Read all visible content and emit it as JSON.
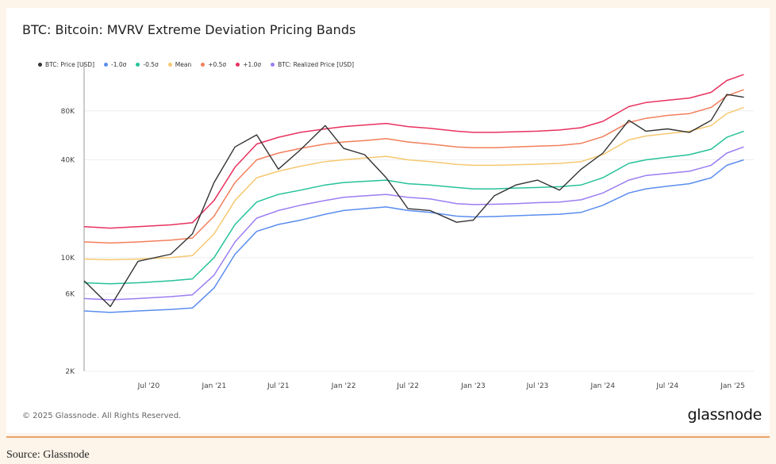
{
  "chart_data": {
    "type": "line",
    "title": "BTC: Bitcoin: MVRV Extreme Deviation Pricing Bands",
    "y_scale": "log",
    "ylim": [
      2000,
      140000
    ],
    "y_ticks": [
      {
        "label": "2K",
        "value": 2000
      },
      {
        "label": "6K",
        "value": 6000
      },
      {
        "label": "10K",
        "value": 10000
      },
      {
        "label": "40K",
        "value": 40000
      },
      {
        "label": "80K",
        "value": 80000
      }
    ],
    "xlim": [
      "2020-01-01",
      "2025-03-01"
    ],
    "x_ticks": [
      {
        "label": "Jul '20",
        "value": "2020-07-01"
      },
      {
        "label": "Jan '21",
        "value": "2021-01-01"
      },
      {
        "label": "Jul '21",
        "value": "2021-07-01"
      },
      {
        "label": "Jan '22",
        "value": "2022-01-01"
      },
      {
        "label": "Jul '22",
        "value": "2022-07-01"
      },
      {
        "label": "Jan '23",
        "value": "2023-01-01"
      },
      {
        "label": "Jul '23",
        "value": "2023-07-01"
      },
      {
        "label": "Jan '24",
        "value": "2024-01-01"
      },
      {
        "label": "Jul '24",
        "value": "2024-07-01"
      },
      {
        "label": "Jan '25",
        "value": "2025-01-01"
      }
    ],
    "grid": true,
    "legend_position": "top",
    "x": [
      "2020-01-01",
      "2020-03-15",
      "2020-06-01",
      "2020-09-01",
      "2020-11-01",
      "2021-01-01",
      "2021-03-01",
      "2021-05-01",
      "2021-07-01",
      "2021-09-01",
      "2021-11-10",
      "2022-01-01",
      "2022-03-01",
      "2022-05-01",
      "2022-07-01",
      "2022-09-01",
      "2022-11-15",
      "2023-01-01",
      "2023-03-01",
      "2023-05-01",
      "2023-07-01",
      "2023-09-01",
      "2023-11-01",
      "2024-01-01",
      "2024-03-14",
      "2024-05-01",
      "2024-07-01",
      "2024-09-01",
      "2024-11-01",
      "2024-12-15",
      "2025-02-01"
    ],
    "series": [
      {
        "name": "BTC: Price [USD]",
        "color": "#333333",
        "values": [
          7200,
          5000,
          9500,
          10500,
          14000,
          29000,
          48000,
          57000,
          35000,
          46000,
          65000,
          47000,
          43000,
          31000,
          20000,
          19500,
          16500,
          17000,
          24000,
          28000,
          30000,
          26000,
          35000,
          44000,
          70000,
          60000,
          62000,
          59000,
          70000,
          101000,
          97000
        ]
      },
      {
        "name": "-1.0σ",
        "color": "#5b8def",
        "values": [
          4700,
          4600,
          4700,
          4800,
          4900,
          6500,
          10500,
          14500,
          16000,
          17000,
          18500,
          19500,
          20000,
          20500,
          19500,
          19000,
          18000,
          17800,
          17900,
          18100,
          18300,
          18500,
          19000,
          21000,
          25000,
          26500,
          27500,
          28500,
          31000,
          37000,
          40000
        ]
      },
      {
        "name": "-0.5σ",
        "color": "#26c29a",
        "values": [
          7000,
          6900,
          7000,
          7200,
          7400,
          10000,
          16000,
          22000,
          24500,
          26000,
          28000,
          29000,
          29500,
          30000,
          28500,
          28000,
          27000,
          26500,
          26500,
          26800,
          27000,
          27300,
          28000,
          31000,
          38000,
          40000,
          41500,
          43000,
          46500,
          55000,
          60000
        ]
      },
      {
        "name": "Mean",
        "color": "#f6c870",
        "values": [
          9800,
          9700,
          9800,
          10000,
          10300,
          14000,
          22500,
          31000,
          34000,
          36500,
          39000,
          40000,
          41000,
          42000,
          40000,
          39000,
          37500,
          37000,
          37000,
          37300,
          37600,
          38000,
          39000,
          43000,
          53000,
          56000,
          58000,
          60000,
          65000,
          77000,
          84000
        ]
      },
      {
        "name": "+0.5σ",
        "color": "#f27f5b",
        "values": [
          12500,
          12300,
          12500,
          12800,
          13200,
          18000,
          29000,
          40000,
          44000,
          47000,
          50000,
          51500,
          52500,
          54000,
          51500,
          50000,
          48000,
          47500,
          47500,
          48000,
          48500,
          49000,
          50500,
          55500,
          68000,
          72000,
          75000,
          77000,
          84000,
          99000,
          108000
        ]
      },
      {
        "name": "+1.0σ",
        "color": "#e8315f",
        "values": [
          15500,
          15200,
          15500,
          15900,
          16400,
          22500,
          36000,
          50000,
          55000,
          59000,
          62000,
          64000,
          65500,
          67000,
          64000,
          62500,
          60000,
          59000,
          59000,
          59500,
          60000,
          61000,
          63000,
          69000,
          85000,
          90000,
          93000,
          96000,
          104000,
          123000,
          134000
        ]
      },
      {
        "name": "BTC: Realized Price [USD]",
        "color": "#9b7ef2",
        "values": [
          5600,
          5500,
          5600,
          5750,
          5900,
          7800,
          12500,
          17500,
          19500,
          21000,
          22500,
          23500,
          24000,
          24500,
          23500,
          23000,
          21500,
          21200,
          21300,
          21500,
          21800,
          22000,
          22700,
          25000,
          30000,
          32000,
          33000,
          34000,
          37000,
          44000,
          48000
        ]
      }
    ]
  },
  "footer": {
    "copyright": "© 2025 Glassnode. All Rights Reserved.",
    "brand": "glassnode"
  },
  "source": "Source: Glassnode"
}
